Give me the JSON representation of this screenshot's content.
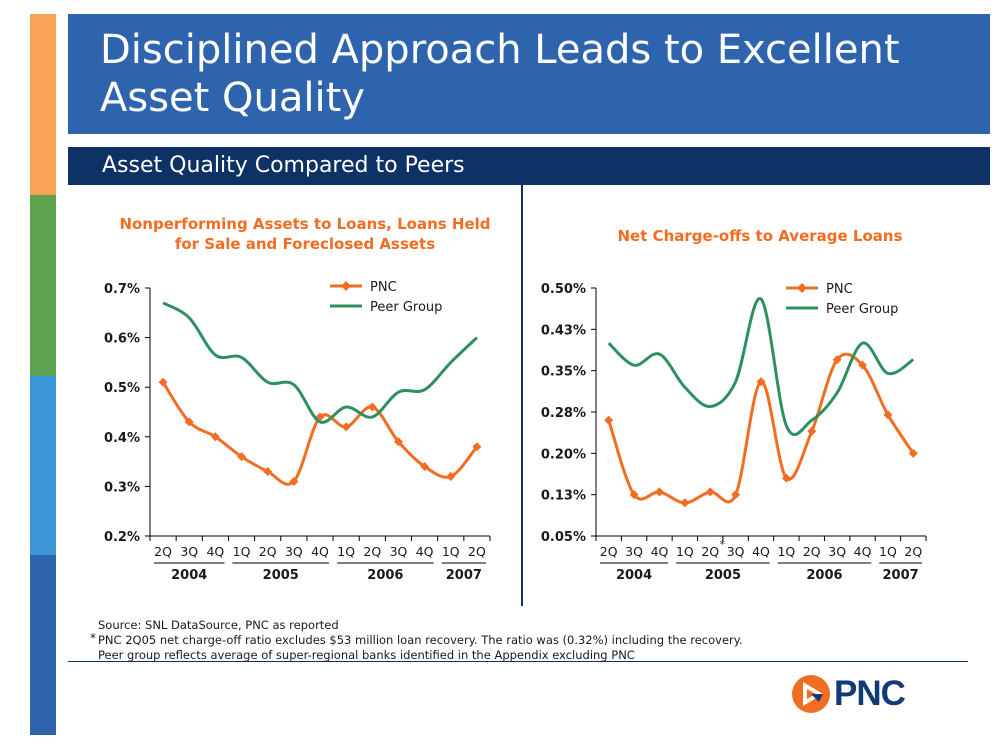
{
  "colors": {
    "sidebar": [
      "#f7a255",
      "#5da24f",
      "#3b95d6",
      "#2d64ad"
    ],
    "title_bg": "#2d64ad",
    "subtitle_bg": "#0f3266",
    "pnc_series": "#f26d21",
    "peer_series": "#2e9060",
    "chart_title": "#f26d21"
  },
  "title": "Disciplined Approach Leads to Excellent Asset Quality",
  "subtitle": "Asset Quality Compared to Peers",
  "notes": {
    "source": "Source: SNL DataSource, PNC as reported",
    "asterisk": "*",
    "footnote": "PNC 2Q05 net charge-off ratio excludes $53 million loan recovery.  The ratio was (0.32%) including the recovery.",
    "peer": "Peer group reflects average of super-regional banks identified in the Appendix excluding PNC"
  },
  "logo": {
    "text": "PNC",
    "icon": "pnc-triangle-logo-icon"
  },
  "chart_data": [
    {
      "type": "line",
      "title": "Nonperforming Assets to Loans, Loans Held for Sale and Foreclosed Assets",
      "categories": [
        "2Q",
        "3Q",
        "4Q",
        "1Q",
        "2Q",
        "3Q",
        "4Q",
        "1Q",
        "2Q",
        "3Q",
        "4Q",
        "1Q",
        "2Q"
      ],
      "year_groups": [
        {
          "label": "2004",
          "start": 0,
          "end": 2
        },
        {
          "label": "2005",
          "start": 3,
          "end": 6
        },
        {
          "label": "2006",
          "start": 7,
          "end": 10
        },
        {
          "label": "2007",
          "start": 11,
          "end": 12
        }
      ],
      "ylim": [
        0.2,
        0.7
      ],
      "yticks": [
        0.2,
        0.3,
        0.4,
        0.5,
        0.6,
        0.7
      ],
      "ytick_labels": [
        "0.2%",
        "0.3%",
        "0.4%",
        "0.5%",
        "0.6%",
        "0.7%"
      ],
      "legend_position": "top-right",
      "series": [
        {
          "name": "PNC",
          "marker": "diamond",
          "values": [
            0.51,
            0.43,
            0.4,
            0.36,
            0.33,
            0.31,
            0.44,
            0.42,
            0.46,
            0.39,
            0.34,
            0.32,
            0.38
          ]
        },
        {
          "name": "Peer Group",
          "marker": "none",
          "values": [
            0.67,
            0.64,
            0.565,
            0.56,
            0.51,
            0.505,
            0.43,
            0.46,
            0.44,
            0.49,
            0.495,
            0.55,
            0.6
          ]
        }
      ]
    },
    {
      "type": "line",
      "title": "Net Charge-offs to Average Loans",
      "categories": [
        "2Q",
        "3Q",
        "4Q",
        "1Q",
        "2Q",
        "3Q",
        "4Q",
        "1Q",
        "2Q",
        "3Q",
        "4Q",
        "1Q",
        "2Q"
      ],
      "category_asterisk_index": 4,
      "year_groups": [
        {
          "label": "2004",
          "start": 0,
          "end": 2
        },
        {
          "label": "2005",
          "start": 3,
          "end": 6
        },
        {
          "label": "2006",
          "start": 7,
          "end": 10
        },
        {
          "label": "2007",
          "start": 11,
          "end": 12
        }
      ],
      "ylim": [
        0.05,
        0.5
      ],
      "yticks": [
        0.05,
        0.125,
        0.2,
        0.275,
        0.35,
        0.425,
        0.5
      ],
      "ytick_labels": [
        "0.05%",
        "0.13%",
        "0.20%",
        "0.28%",
        "0.35%",
        "0.43%",
        "0.50%"
      ],
      "legend_position": "top-right",
      "series": [
        {
          "name": "PNC",
          "marker": "diamond",
          "values": [
            0.26,
            0.125,
            0.13,
            0.11,
            0.13,
            0.125,
            0.33,
            0.155,
            0.24,
            0.37,
            0.36,
            0.27,
            0.2
          ]
        },
        {
          "name": "Peer Group",
          "marker": "none",
          "values": [
            0.4,
            0.36,
            0.38,
            0.32,
            0.285,
            0.33,
            0.48,
            0.25,
            0.26,
            0.31,
            0.4,
            0.345,
            0.37
          ]
        }
      ]
    }
  ]
}
